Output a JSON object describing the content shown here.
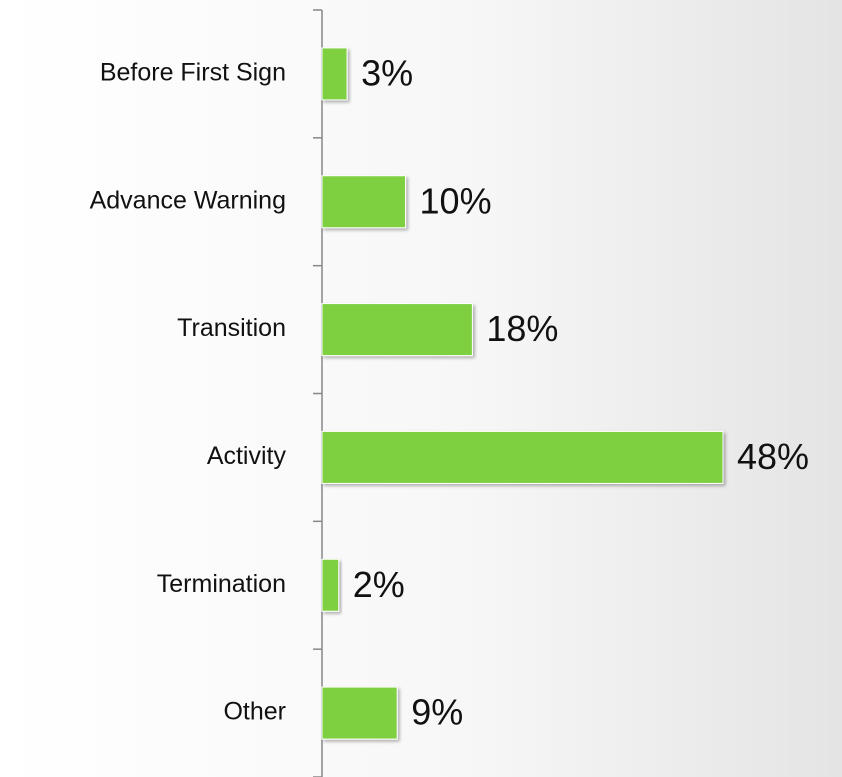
{
  "chart_data": {
    "type": "bar",
    "orientation": "horizontal",
    "categories": [
      "Before First Sign",
      "Advance Warning",
      "Transition",
      "Activity",
      "Termination",
      "Other"
    ],
    "values": [
      3,
      10,
      18,
      48,
      2,
      9
    ],
    "value_labels": [
      "3%",
      "10%",
      "18%",
      "48%",
      "2%",
      "9%"
    ],
    "color": "#7ed03f"
  }
}
